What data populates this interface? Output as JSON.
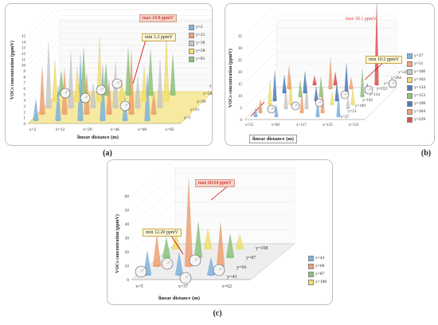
{
  "captions": {
    "a": "(a)",
    "b": "(b)",
    "c": "(c)"
  },
  "colors": {
    "blue": "#7fb3e0",
    "orange": "#f0a070",
    "gray": "#c8c8c8",
    "yellow": "#f2e06a",
    "darkblue": "#4a7ab8",
    "green": "#8cc37a",
    "floor_a": "#f6eaa0"
  },
  "chart_data": [
    {
      "type": "3d-cone",
      "panel": "a",
      "title": "",
      "ylabel": "VOCs concentration (ppmV)",
      "xlabel": "linear distance (m)",
      "x_ticks": [
        "x=2",
        "x=12",
        "x=29",
        "x=46",
        "x=60",
        "x=82"
      ],
      "y_ticks": [
        "y=2",
        "y=21",
        "y=39",
        "y=58",
        "y=81"
      ],
      "z_ticks": [
        "0",
        "1",
        "2",
        "3",
        "4",
        "5",
        "6",
        "7",
        "8",
        "9",
        "10",
        "11",
        "12",
        "13",
        "14",
        "15"
      ],
      "ylim": [
        0,
        15
      ],
      "legend": [
        "y=2",
        "y=21",
        "y=39",
        "y=58",
        "y=81"
      ],
      "annotations": [
        "max 14.9 ppmV",
        "min 1.2 ppmV"
      ],
      "max": 14.9,
      "min": 1.2
    },
    {
      "type": "3d-cone",
      "panel": "b",
      "title": "",
      "ylabel": "VOCs concentration (ppmV)",
      "xlabel": "linear distance (m)",
      "x_ticks": [
        "x=55",
        "x=69",
        "x=117",
        "x=123",
        "x=131"
      ],
      "y_ticks": [
        "y=27",
        "y=51",
        "y=100",
        "y=102",
        "y=134",
        "y=153",
        "y=198",
        "y=204",
        "y=229"
      ],
      "z_ticks": [
        "0",
        "5",
        "10",
        "15",
        "20",
        "25",
        "30",
        "35"
      ],
      "ylim": [
        0,
        35
      ],
      "legend": [
        "y=27",
        "y=51",
        "y=100",
        "y=102",
        "y=134",
        "y=153",
        "y=198",
        "y=204",
        "y=229"
      ],
      "annotations": [
        "max 30.1 ppmV",
        "min 10.2 ppmV"
      ],
      "max": 30.1,
      "min": 10.2
    },
    {
      "type": "3d-cone",
      "panel": "c",
      "title": "",
      "ylabel": "VOCs concentration (ppmV)",
      "xlabel": "linear distance (m)",
      "x_ticks": [
        "x=5",
        "x=37",
        "x=62"
      ],
      "y_ticks": [
        "y=43",
        "y=66",
        "y=87",
        "y=108"
      ],
      "z_ticks": [
        "0",
        "10",
        "20",
        "30",
        "40",
        "50",
        "60"
      ],
      "ylim": [
        0,
        60
      ],
      "legend": [
        "y=43",
        "y=66",
        "y=87",
        "y=108"
      ],
      "annotations": [
        "max  60.64 ppmV",
        "min 12.20 ppmV"
      ],
      "max": 60.64,
      "min": 12.2
    }
  ]
}
